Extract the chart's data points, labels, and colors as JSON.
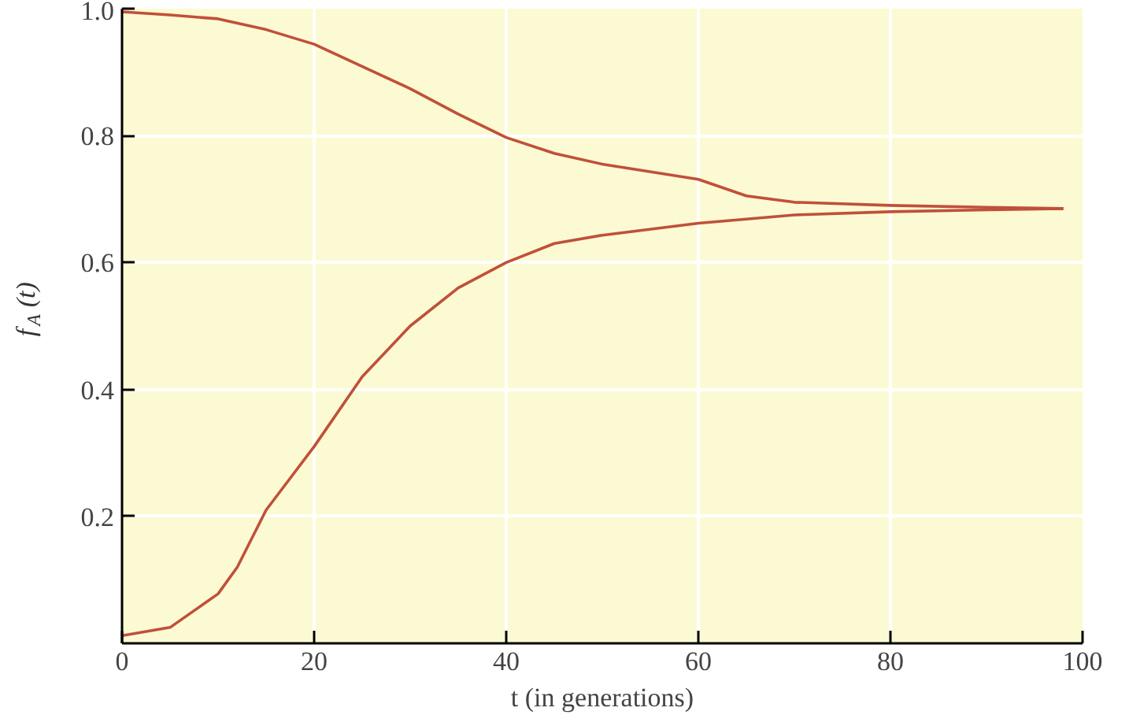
{
  "chart_data": {
    "type": "line",
    "xlabel": "t (in generations)",
    "ylabel": "f$_{A}$ (t)",
    "xlim": [
      0,
      100
    ],
    "ylim": [
      0,
      1.0
    ],
    "xticks": [
      0,
      20,
      40,
      60,
      80,
      100
    ],
    "yticks": [
      0.2,
      0.4,
      0.6,
      0.8,
      {
        "value": 1.0,
        "label": "1.0"
      }
    ],
    "grid": true,
    "marker": "none",
    "line_style": "solid",
    "series": [
      {
        "color": "#c0503a",
        "x": [
          0,
          5,
          10,
          15,
          20,
          25,
          30,
          35,
          40,
          45,
          50,
          60,
          65,
          70,
          80,
          90,
          98
        ],
        "values": [
          0.995,
          0.99,
          0.984,
          0.967,
          0.944,
          0.909,
          0.874,
          0.834,
          0.797,
          0.772,
          0.755,
          0.731,
          0.705,
          0.695,
          0.69,
          0.687,
          0.685
        ]
      },
      {
        "color": "#c0503a",
        "x": [
          0,
          5,
          10,
          12,
          15,
          17,
          20,
          25,
          30,
          35,
          40,
          45,
          50,
          60,
          70,
          80,
          90,
          98
        ],
        "values": [
          0.012,
          0.025,
          0.078,
          0.12,
          0.21,
          0.25,
          0.31,
          0.42,
          0.5,
          0.56,
          0.6,
          0.63,
          0.643,
          0.662,
          0.675,
          0.68,
          0.683,
          0.685
        ]
      }
    ]
  }
}
